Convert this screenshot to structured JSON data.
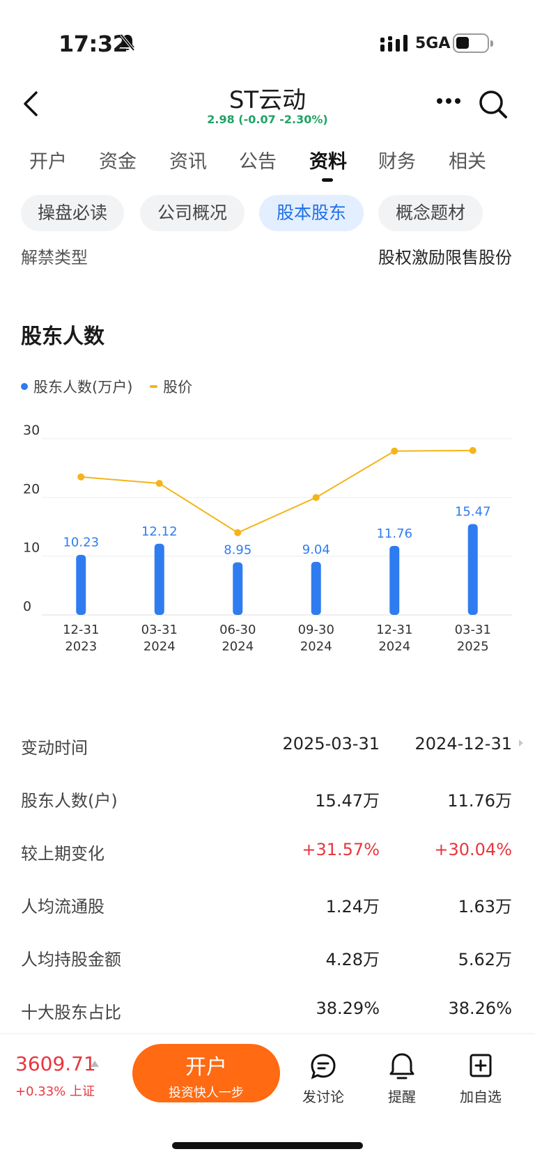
{
  "status_bar": {
    "time": "17:32",
    "network": "5GA"
  },
  "header": {
    "title": "ST云动",
    "quote": "2.98 (-0.07 -2.30%)",
    "quote_color": "#1fa364"
  },
  "tabs": [
    {
      "label": "开户"
    },
    {
      "label": "资金"
    },
    {
      "label": "资讯"
    },
    {
      "label": "公告"
    },
    {
      "label": "资料",
      "active": true
    },
    {
      "label": "财务"
    },
    {
      "label": "相关"
    }
  ],
  "subtabs": [
    {
      "label": "操盘必读"
    },
    {
      "label": "公司概况"
    },
    {
      "label": "股本股东",
      "active": true
    },
    {
      "label": "概念题材"
    }
  ],
  "unlock_row": {
    "label": "解禁类型",
    "value": "股权激励限售股份"
  },
  "section": {
    "title": "股东人数"
  },
  "legend": {
    "bars": "股东人数(万户)",
    "line": "股价"
  },
  "chart_data": {
    "type": "bar+line",
    "categories": [
      "12-31\n2023",
      "03-31\n2024",
      "06-30\n2024",
      "09-30\n2024",
      "12-31\n2024",
      "03-31\n2025"
    ],
    "category_lines": [
      [
        "12-31",
        "2023"
      ],
      [
        "03-31",
        "2024"
      ],
      [
        "06-30",
        "2024"
      ],
      [
        "09-30",
        "2024"
      ],
      [
        "12-31",
        "2024"
      ],
      [
        "03-31",
        "2025"
      ]
    ],
    "series": [
      {
        "name": "股东人数(万户)",
        "type": "bar",
        "color": "#2f7cf0",
        "values": [
          10.23,
          12.12,
          8.95,
          9.04,
          11.76,
          15.47
        ],
        "labels": [
          "10.23",
          "12.12",
          "8.95",
          "9.04",
          "11.76",
          "15.47"
        ]
      },
      {
        "name": "股价",
        "type": "line",
        "color": "#f4b41a",
        "values": [
          23.5,
          22.4,
          14.0,
          20.0,
          27.9,
          28.0
        ]
      }
    ],
    "yticks": [
      "0",
      "10",
      "20",
      "30"
    ],
    "ylim": [
      0,
      30
    ],
    "grid": true,
    "legend_position": "top-left"
  },
  "table": {
    "header": {
      "label": "变动时间",
      "col1": "2025-03-31",
      "col2": "2024-12-31"
    },
    "rows": [
      {
        "label": "股东人数(户)",
        "col1": "15.47万",
        "col2": "11.76万"
      },
      {
        "label": "较上期变化",
        "col1": "+31.57%",
        "col2": "+30.04%",
        "highlight": true
      },
      {
        "label": "人均流通股",
        "col1": "1.24万",
        "col2": "1.63万"
      },
      {
        "label": "人均持股金额",
        "col1": "4.28万",
        "col2": "5.62万"
      },
      {
        "label": "十大股东占比",
        "col1": "38.29%",
        "col2": "38.26%"
      }
    ]
  },
  "bottom_bar": {
    "index_value": "3609.71",
    "index_change": "+0.33%",
    "index_name": "上证",
    "open_button": {
      "main": "开户",
      "sub": "投资快人一步"
    },
    "items": [
      {
        "label": "发讨论",
        "icon": "chat-icon"
      },
      {
        "label": "提醒",
        "icon": "bell-icon"
      },
      {
        "label": "加自选",
        "icon": "add-watchlist-icon"
      }
    ]
  },
  "colors": {
    "accent": "#1f6fe8",
    "up": "#e8363d",
    "down": "#1fa364",
    "orange": "#ff6a12"
  }
}
